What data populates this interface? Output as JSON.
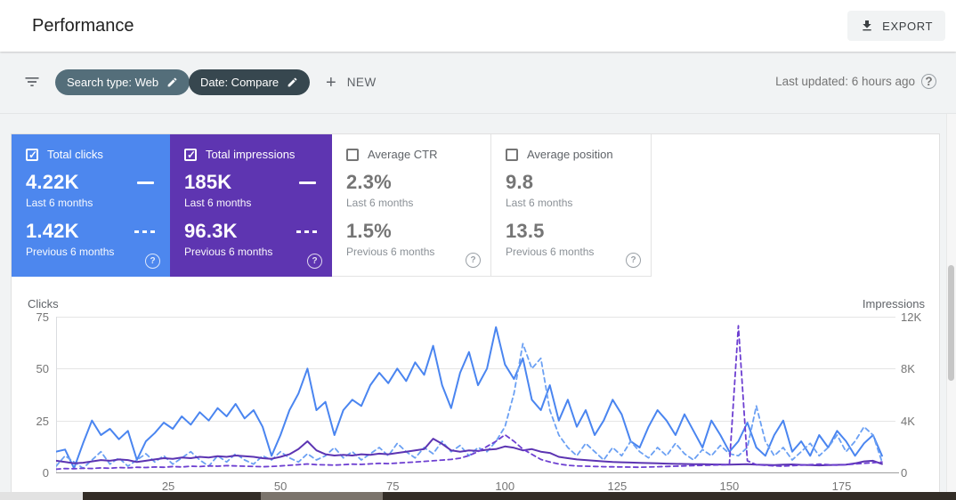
{
  "header": {
    "title": "Performance",
    "export_label": "EXPORT"
  },
  "filterbar": {
    "chips": [
      {
        "label": "Search type: Web",
        "color": "#546e7a"
      },
      {
        "label": "Date: Compare",
        "color": "#37474f"
      }
    ],
    "new_label": "NEW",
    "last_updated": "Last updated: 6 hours ago"
  },
  "cards": [
    {
      "label": "Total clicks",
      "checked": true,
      "color": "#4d87ee",
      "value_current": "4.22K",
      "caption_current": "Last 6 months",
      "value_previous": "1.42K",
      "caption_previous": "Previous 6 months"
    },
    {
      "label": "Total impressions",
      "checked": true,
      "color": "#5e35b1",
      "value_current": "185K",
      "caption_current": "Last 6 months",
      "value_previous": "96.3K",
      "caption_previous": "Previous 6 months"
    },
    {
      "label": "Average CTR",
      "checked": false,
      "color": "",
      "value_current": "2.3%",
      "caption_current": "Last 6 months",
      "value_previous": "1.5%",
      "caption_previous": "Previous 6 months"
    },
    {
      "label": "Average position",
      "checked": false,
      "color": "",
      "value_current": "9.8",
      "caption_current": "Last 6 months",
      "value_previous": "13.5",
      "caption_previous": "Previous 6 months"
    }
  ],
  "chart_data": {
    "type": "line",
    "left_axis": {
      "label": "Clicks",
      "ticks": [
        "0",
        "25",
        "50",
        "75"
      ],
      "min": 0,
      "max": 75
    },
    "right_axis": {
      "label": "Impressions",
      "ticks": [
        "0",
        "4K",
        "8K",
        "12K"
      ],
      "min": 0,
      "max": 12000
    },
    "x_axis": {
      "ticks": [
        25,
        50,
        75,
        100,
        125,
        150,
        175
      ],
      "min": 0,
      "max": 187
    },
    "x_step": 2,
    "grid": "horizontal-only",
    "legend_position": "none (legend lives in metric cards)",
    "series": [
      {
        "name": "Total clicks — last 6 months",
        "axis": "left",
        "style": "solid",
        "color": "#4a85f0",
        "width": 2,
        "values": [
          10,
          11,
          2,
          14,
          25,
          18,
          21,
          16,
          20,
          6,
          15,
          19,
          24,
          21,
          27,
          23,
          29,
          25,
          31,
          27,
          33,
          26,
          30,
          22,
          8,
          18,
          30,
          38,
          50,
          30,
          34,
          18,
          30,
          35,
          32,
          42,
          48,
          43,
          50,
          44,
          53,
          47,
          61,
          42,
          31,
          48,
          58,
          42,
          50,
          70,
          52,
          45,
          55,
          35,
          30,
          42,
          25,
          35,
          22,
          30,
          18,
          25,
          35,
          28,
          15,
          12,
          22,
          30,
          25,
          18,
          28,
          20,
          12,
          25,
          18,
          10,
          15,
          24,
          12,
          8,
          18,
          25,
          10,
          15,
          8,
          18,
          12,
          20,
          15,
          8,
          14,
          18,
          8
        ]
      },
      {
        "name": "Total clicks — previous 6 months",
        "axis": "left",
        "style": "dashed",
        "color": "#6ba0f3",
        "width": 1.8,
        "values": [
          3,
          8,
          5,
          2,
          6,
          10,
          4,
          7,
          3,
          6,
          9,
          5,
          8,
          4,
          7,
          10,
          6,
          3,
          8,
          5,
          9,
          6,
          4,
          8,
          6,
          10,
          7,
          5,
          9,
          6,
          8,
          12,
          7,
          10,
          6,
          9,
          12,
          8,
          14,
          10,
          7,
          12,
          9,
          15,
          10,
          13,
          8,
          12,
          10,
          15,
          22,
          38,
          62,
          50,
          55,
          30,
          18,
          12,
          8,
          14,
          10,
          6,
          12,
          8,
          15,
          10,
          7,
          12,
          8,
          14,
          9,
          6,
          11,
          8,
          13,
          9,
          8,
          12,
          32,
          15,
          8,
          12,
          6,
          10,
          14,
          8,
          12,
          18,
          10,
          15,
          22,
          18,
          5
        ]
      },
      {
        "name": "Total impressions — last 6 months",
        "axis": "right",
        "style": "solid",
        "color": "#5c34b2",
        "width": 2,
        "values": [
          900,
          800,
          700,
          750,
          850,
          950,
          900,
          1000,
          950,
          800,
          900,
          1000,
          1100,
          1050,
          1150,
          1100,
          1200,
          1150,
          1250,
          1200,
          1300,
          1250,
          1200,
          1100,
          1050,
          1200,
          1400,
          1800,
          2400,
          1700,
          1400,
          1300,
          1350,
          1300,
          1400,
          1350,
          1450,
          1400,
          1500,
          1600,
          1700,
          1800,
          2600,
          2200,
          1700,
          1600,
          1700,
          1650,
          1750,
          1800,
          2000,
          1900,
          1700,
          1800,
          1600,
          1500,
          1200,
          1100,
          1000,
          950,
          900,
          850,
          800,
          780,
          760,
          740,
          720,
          700,
          680,
          660,
          650,
          640,
          630,
          620,
          610,
          600,
          620,
          640,
          600,
          580,
          560,
          600,
          620,
          580,
          560,
          540,
          560,
          580,
          600,
          700,
          850,
          900,
          650
        ]
      },
      {
        "name": "Total impressions — previous 6 months",
        "axis": "right",
        "style": "dashed",
        "color": "#6d3fd1",
        "width": 1.8,
        "values": [
          250,
          300,
          280,
          320,
          300,
          350,
          320,
          380,
          350,
          400,
          380,
          420,
          400,
          450,
          420,
          480,
          450,
          500,
          480,
          520,
          500,
          480,
          460,
          440,
          460,
          500,
          550,
          600,
          650,
          600,
          580,
          560,
          600,
          640,
          620,
          660,
          700,
          680,
          720,
          760,
          800,
          850,
          900,
          950,
          1000,
          1100,
          1300,
          1600,
          2000,
          2400,
          2900,
          2400,
          1800,
          1400,
          1000,
          800,
          650,
          550,
          500,
          480,
          460,
          440,
          430,
          420,
          410,
          400,
          420,
          440,
          460,
          480,
          500,
          520,
          540,
          560,
          580,
          600,
          11300,
          900,
          600,
          550,
          500,
          480,
          520,
          560,
          600,
          640,
          600,
          560,
          600,
          650,
          700,
          750,
          800
        ]
      }
    ]
  }
}
